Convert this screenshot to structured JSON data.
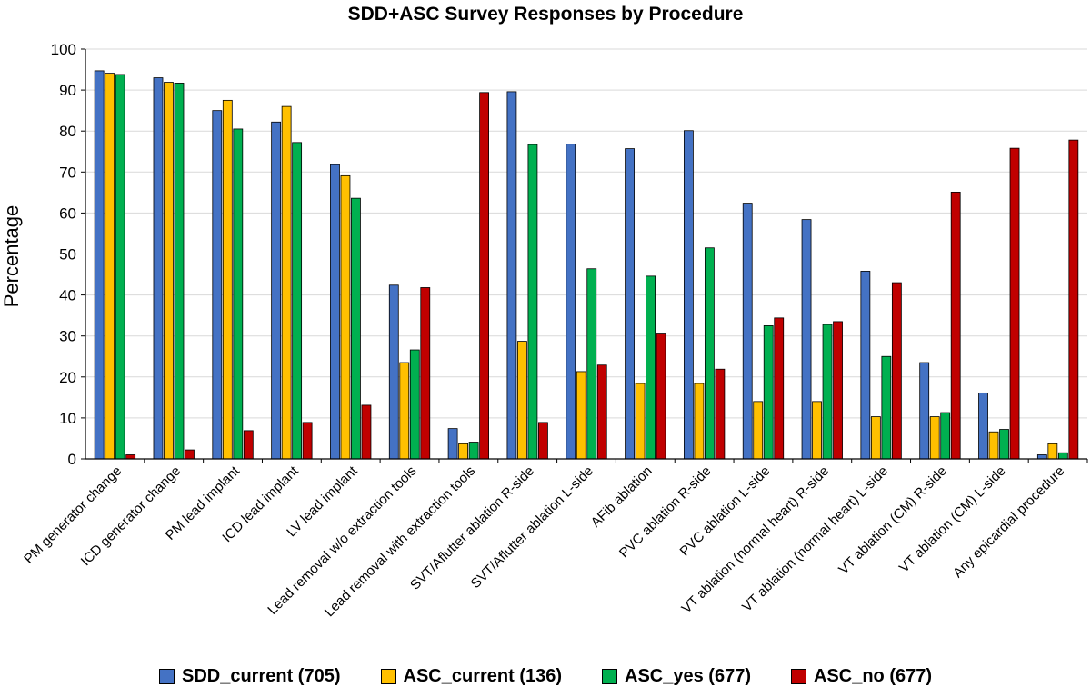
{
  "chart_data": {
    "type": "bar",
    "title": "SDD+ASC Survey Responses by Procedure",
    "xlabel": "",
    "ylabel": "Percentage",
    "ylim": [
      0,
      100
    ],
    "yticks": [
      0,
      10,
      20,
      30,
      40,
      50,
      60,
      70,
      80,
      90,
      100
    ],
    "grid": true,
    "legend": "bottom",
    "categories": [
      "PM generator change",
      "ICD generator change",
      "PM lead implant",
      "ICD lead implant",
      "LV lead implant",
      "Lead removal w/o extraction tools",
      "Lead removal with extraction tools",
      "SVT/Aflutter ablation R-side",
      "SVT/Aflutter ablation L-side",
      "AFib ablation",
      "PVC ablation R-side",
      "PVC ablation L-side",
      "VT ablation (normal heart) R-side",
      "VT ablation (normal heart) L-side",
      "VT ablation (CM) R-side",
      "VT ablation (CM) L-side",
      "Any epicardial procedure"
    ],
    "series": [
      {
        "name": "SDD_current (705)",
        "color": "#4472C4",
        "values": [
          94.7,
          93.0,
          85.0,
          82.2,
          71.8,
          42.4,
          7.4,
          89.6,
          76.8,
          75.7,
          80.1,
          62.4,
          58.4,
          45.8,
          23.5,
          16.1,
          1.0
        ]
      },
      {
        "name": "ASC_current (136)",
        "color": "#FFC000",
        "values": [
          94.1,
          91.9,
          87.5,
          86.0,
          69.1,
          23.5,
          3.7,
          28.7,
          21.3,
          18.4,
          18.4,
          14.0,
          14.0,
          10.3,
          10.3,
          6.6,
          3.7
        ]
      },
      {
        "name": "ASC_yes (677)",
        "color": "#00B050",
        "values": [
          93.8,
          91.7,
          80.5,
          77.2,
          63.6,
          26.6,
          4.1,
          76.7,
          46.4,
          44.6,
          51.5,
          32.5,
          32.8,
          25.0,
          11.3,
          7.2,
          1.5
        ]
      },
      {
        "name": "ASC_no (677)",
        "color": "#C00000",
        "values": [
          1.0,
          2.2,
          6.9,
          8.9,
          13.1,
          41.8,
          89.4,
          8.9,
          22.9,
          30.7,
          21.9,
          34.4,
          33.5,
          43.0,
          65.1,
          75.8,
          77.8
        ]
      }
    ]
  }
}
